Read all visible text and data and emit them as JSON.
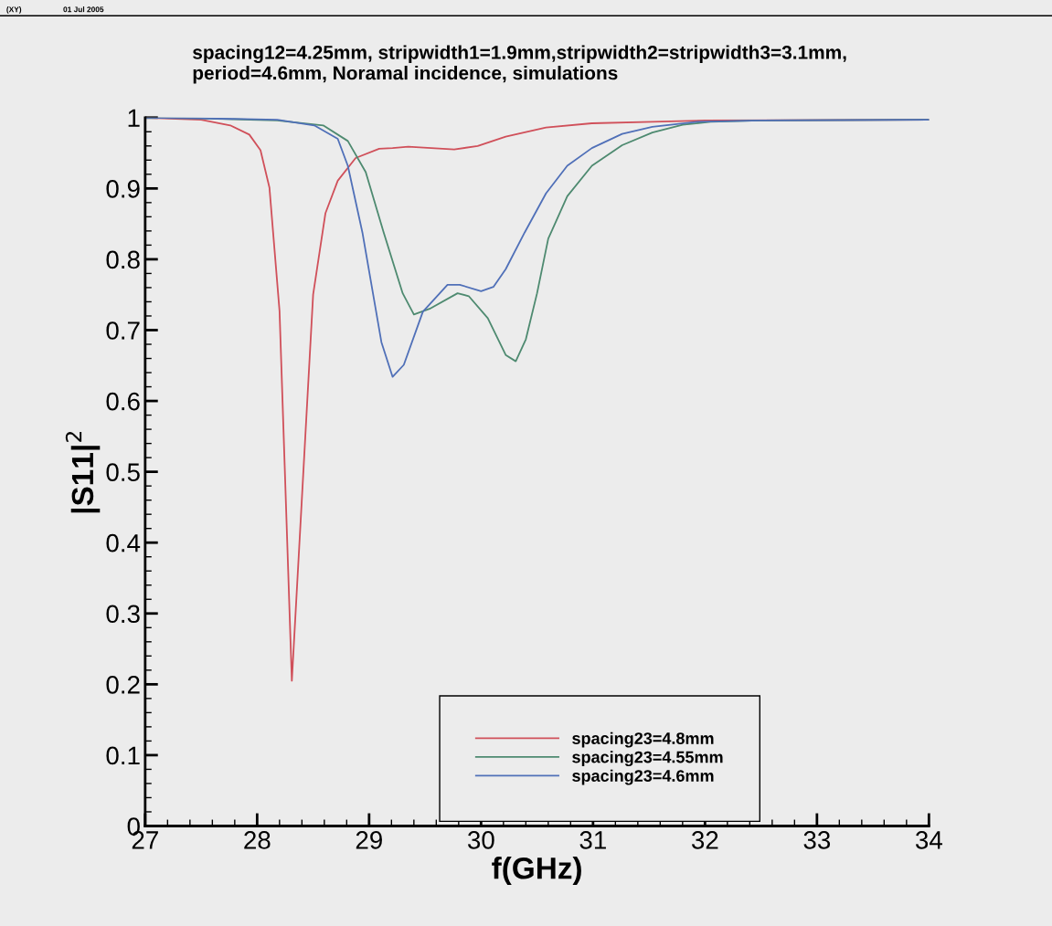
{
  "chart_data": {
    "type": "line",
    "title": "spacing12=4.25mm, stripwidth1=1.9mm,stripwidth2=stripwidth3=3.1mm,\nperiod=4.6mm, Noramal incidence, simulations",
    "xlabel": "f(GHz)",
    "ylabel": "|S11|$^{2}$",
    "annotations": [
      "(XY)",
      "01 Jul 2005"
    ],
    "xlim": [
      27,
      34
    ],
    "xticks": [
      27,
      28,
      29,
      30,
      31,
      32,
      33,
      34
    ],
    "ylim": [
      0,
      1
    ],
    "yticks": [
      0,
      0.1,
      0.2,
      0.3,
      0.4,
      0.5,
      0.6,
      0.7,
      0.8,
      0.9,
      1
    ],
    "grid": false,
    "legend": "bottom",
    "marker": "none",
    "line_style": "solid",
    "series": [
      {
        "name": "spacing23=4.8mm",
        "color": "#d0505a",
        "x": [
          27,
          27.5,
          27.76,
          27.93,
          28.03,
          28.11,
          28.2,
          28.31,
          28.5,
          28.61,
          28.72,
          28.88,
          29.09,
          29.21,
          29.35,
          29.76,
          29.97,
          30.22,
          30.58,
          30.99,
          31.53,
          32,
          34
        ],
        "values": [
          1,
          0.997,
          0.989,
          0.976,
          0.954,
          0.901,
          0.727,
          0.205,
          0.75,
          0.865,
          0.911,
          0.943,
          0.956,
          0.957,
          0.959,
          0.955,
          0.96,
          0.973,
          0.986,
          0.992,
          0.994,
          0.996,
          0.997
        ]
      },
      {
        "name": "spacing23=4.55mm",
        "color": "#4e8a70",
        "x": [
          27,
          27.5,
          28.18,
          28.59,
          28.81,
          28.97,
          29.13,
          29.3,
          29.4,
          29.54,
          29.79,
          29.89,
          30.06,
          30.22,
          30.31,
          30.4,
          30.5,
          30.6,
          30.77,
          30.99,
          31.26,
          31.53,
          31.8,
          32.05,
          32.5,
          34
        ],
        "values": [
          1,
          0.999,
          0.996,
          0.989,
          0.967,
          0.923,
          0.838,
          0.752,
          0.722,
          0.73,
          0.752,
          0.748,
          0.717,
          0.665,
          0.656,
          0.687,
          0.752,
          0.829,
          0.889,
          0.932,
          0.961,
          0.979,
          0.99,
          0.994,
          0.996,
          0.997
        ]
      },
      {
        "name": "spacing23=4.6mm",
        "color": "#5070b8",
        "x": [
          27,
          27.5,
          28.18,
          28.51,
          28.72,
          28.81,
          28.94,
          29.11,
          29.21,
          29.31,
          29.48,
          29.7,
          29.81,
          30.0,
          30.11,
          30.22,
          30.39,
          30.58,
          30.77,
          30.99,
          31.26,
          31.53,
          31.93,
          32.5,
          34
        ],
        "values": [
          1,
          0.999,
          0.997,
          0.989,
          0.97,
          0.932,
          0.838,
          0.683,
          0.634,
          0.651,
          0.726,
          0.764,
          0.764,
          0.755,
          0.761,
          0.786,
          0.838,
          0.893,
          0.932,
          0.957,
          0.977,
          0.987,
          0.994,
          0.996,
          0.997
        ]
      }
    ]
  }
}
